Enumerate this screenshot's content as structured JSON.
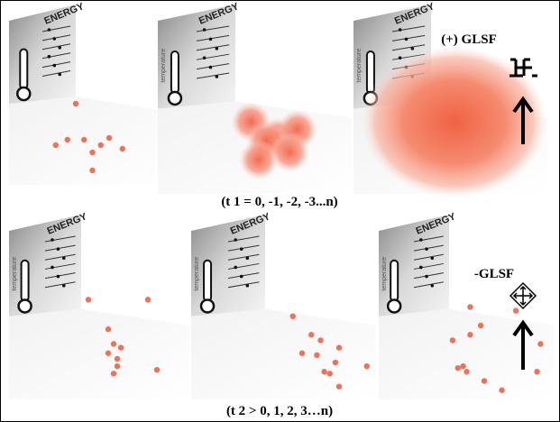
{
  "top_row": {
    "panels": [
      {
        "energy": "ENERGY"
      },
      {
        "energy": "ENERGY",
        "axis": "temperature"
      },
      {
        "energy": "ENERGY",
        "axis": "temperature"
      }
    ],
    "annotation": "(+) GLSF",
    "caption": "(t 1 = 0, -1, -2, -3...n)"
  },
  "bottom_row": {
    "panels": [
      {
        "energy": "ENERGY",
        "axis": "temperature"
      },
      {
        "energy": "ENERGY",
        "axis": "temperature"
      },
      {
        "energy": "ENERGY",
        "axis": "temperature"
      }
    ],
    "annotation": "-GLSF",
    "caption": "(t 2 > 0, 1, 2, 3…n)"
  }
}
